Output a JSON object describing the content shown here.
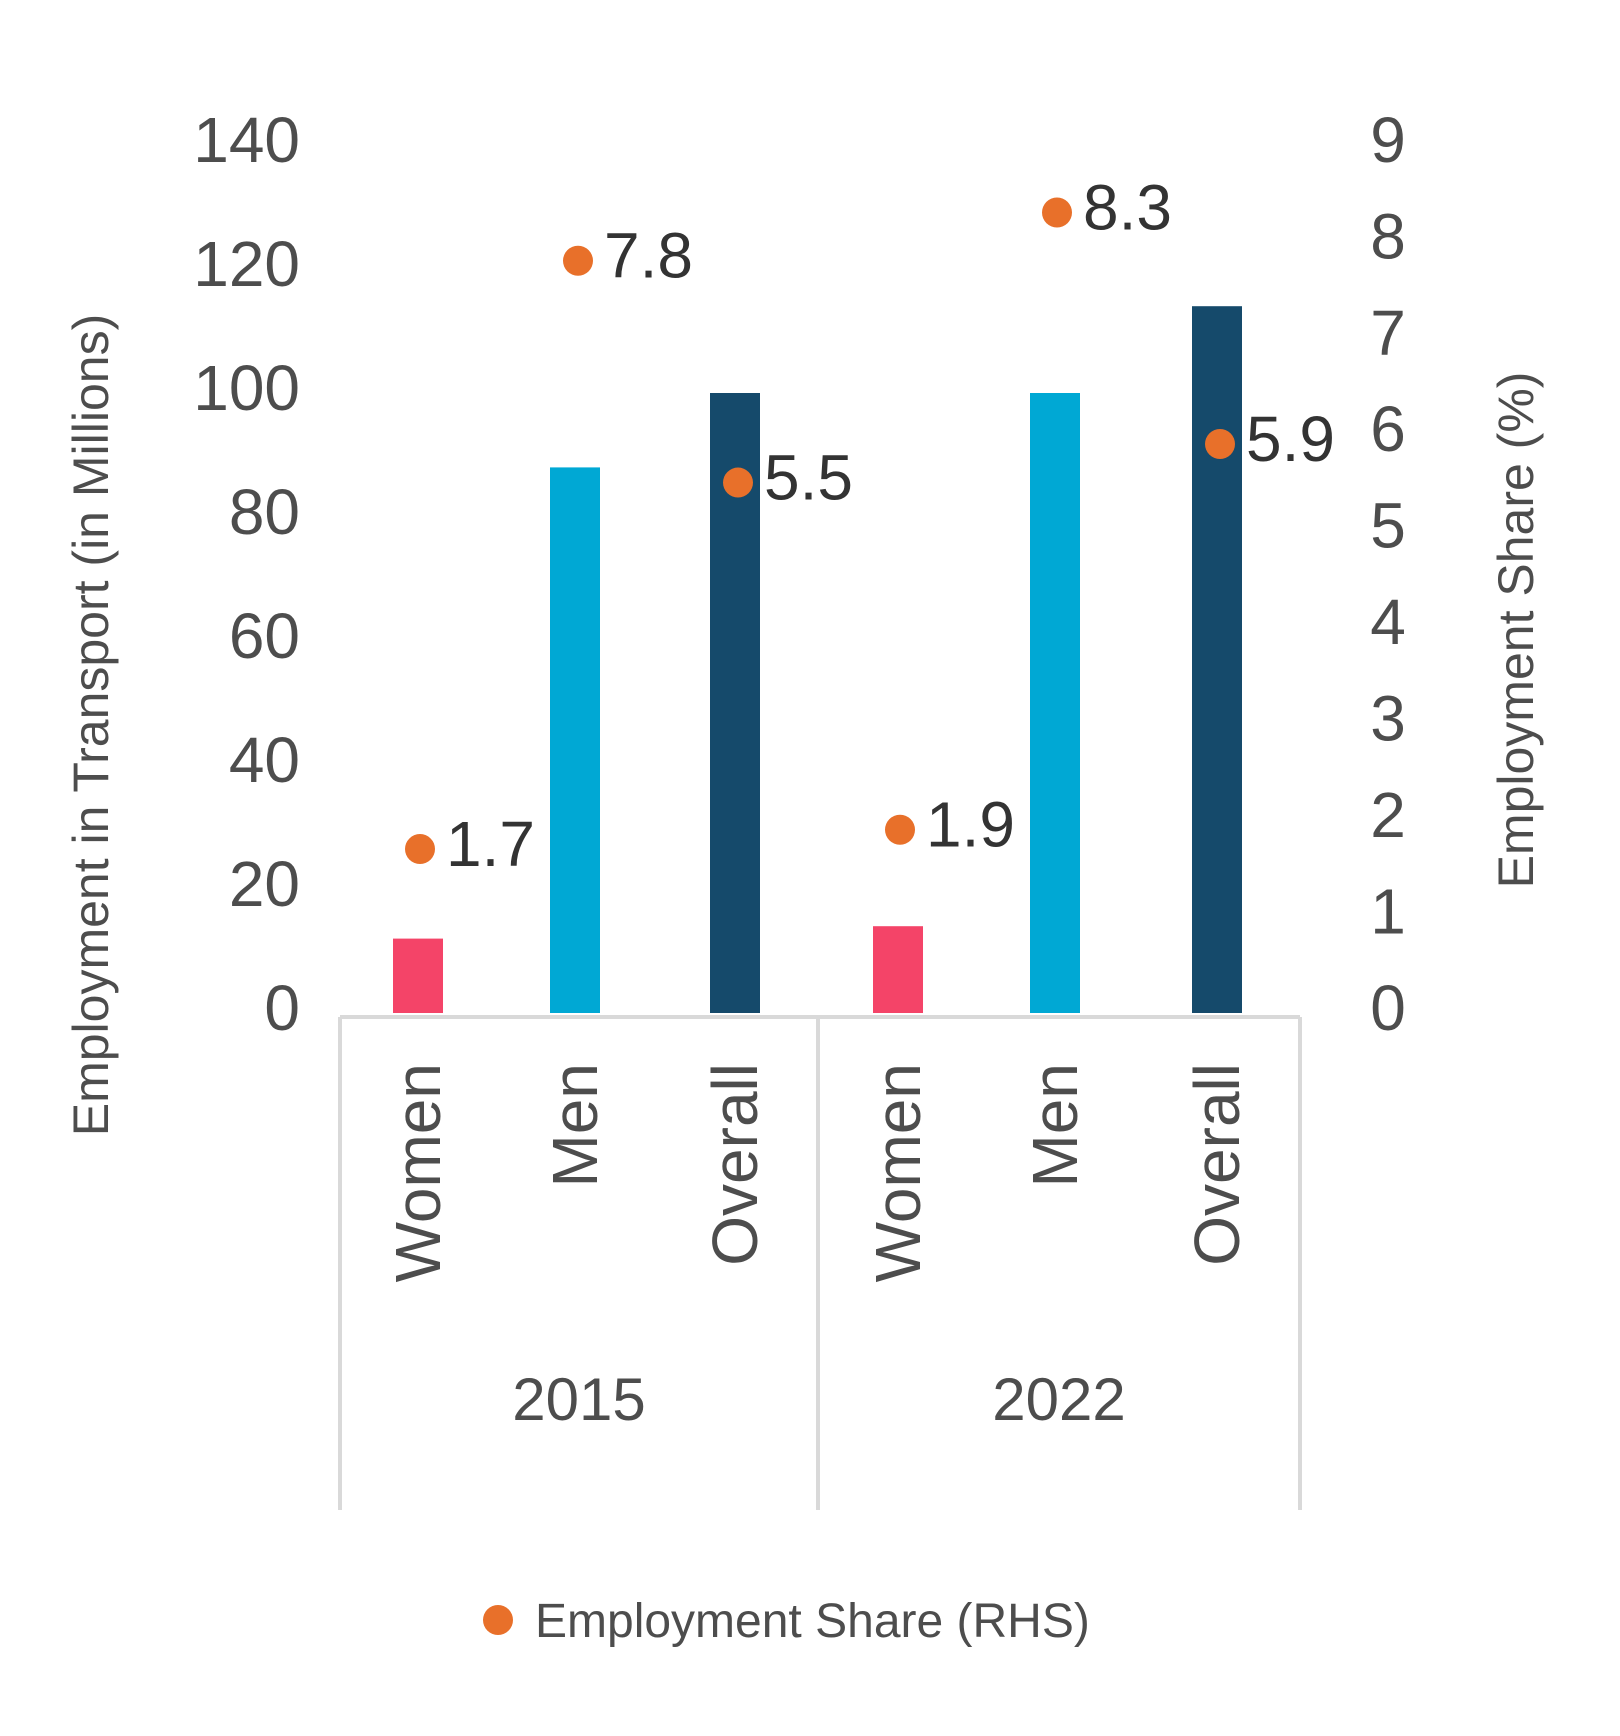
{
  "chart_data": {
    "type": "bar",
    "groups": [
      "2015",
      "2022"
    ],
    "categories": [
      "Women",
      "Men",
      "Overall"
    ],
    "bars": [
      {
        "group": "2015",
        "category": "Women",
        "value": 12,
        "color": "#f44468"
      },
      {
        "group": "2015",
        "category": "Men",
        "value": 88,
        "color": "#00a8d4"
      },
      {
        "group": "2015",
        "category": "Overall",
        "value": 100,
        "color": "#154a6b"
      },
      {
        "group": "2022",
        "category": "Women",
        "value": 14,
        "color": "#f44468"
      },
      {
        "group": "2022",
        "category": "Men",
        "value": 100,
        "color": "#00a8d4"
      },
      {
        "group": "2022",
        "category": "Overall",
        "value": 114,
        "color": "#154a6b"
      }
    ],
    "series": [
      {
        "name": "Employment Share (RHS)",
        "axis": "right",
        "type": "scatter",
        "color": "#e8702a",
        "values": [
          1.7,
          7.8,
          5.5,
          1.9,
          8.3,
          5.9
        ]
      }
    ],
    "y_left": {
      "label": "Employment in Transport (in Millions)",
      "ylim": [
        0,
        140
      ],
      "ticks": [
        0,
        20,
        40,
        60,
        80,
        100,
        120,
        140
      ]
    },
    "y_right": {
      "label": "Employment Share (%)",
      "ylim": [
        0,
        9
      ],
      "ticks": [
        0,
        1,
        2,
        3,
        4,
        5,
        6,
        7,
        8,
        9
      ]
    },
    "legend": {
      "position": "bottom",
      "entries": [
        "Employment Share (RHS)"
      ]
    },
    "grid": false
  }
}
